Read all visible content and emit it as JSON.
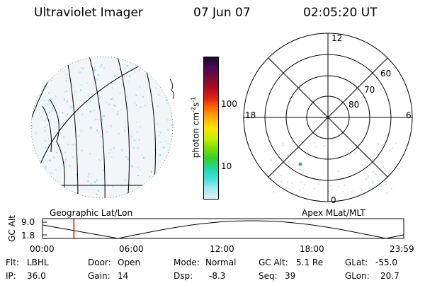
{
  "header": {
    "title": "Ultraviolet Imager",
    "date": "07 Jun 07",
    "time": "02:05:20 UT"
  },
  "colorbar": {
    "unit_label": "photon cm-2 s-1",
    "unit_base": "photon cm",
    "unit_exp1": "-2",
    "unit_s": "s",
    "unit_exp2": "-1",
    "ticks": [
      "100",
      "10"
    ],
    "colors": [
      "#1a0a2a",
      "#4a0a55",
      "#7a0a3a",
      "#b00a20",
      "#e02010",
      "#ff6a00",
      "#ffb000",
      "#ffe400",
      "#c8f000",
      "#7ae000",
      "#30d030",
      "#20d8a0",
      "#40e0e0",
      "#a8e8f0",
      "#e4eef4"
    ]
  },
  "left_map": {
    "caption": "Geographic Lat/Lon"
  },
  "polar_map": {
    "caption": "Apex MLat/MLT",
    "mlt_labels": {
      "top": "12",
      "left": "18",
      "right": "6",
      "bottom": "0"
    },
    "lat_labels": [
      "60",
      "70",
      "80"
    ]
  },
  "timeline": {
    "ylabel": "GC Alt",
    "y_ticks": [
      "9.0",
      "1.8"
    ],
    "x_ticks": [
      "00:00",
      "06:00",
      "12:00",
      "18:00",
      "23:59"
    ],
    "cursor_time": "02:05"
  },
  "info": {
    "filter_label": "Flt:",
    "filter_value": "LBHL",
    "ip_label": "IP:",
    "ip_value": "36.0",
    "door_label": "Door:",
    "door_value": "Open",
    "gain_label": "Gain:",
    "gain_value": "14",
    "mode_label": "Mode:",
    "mode_value": "Normal",
    "dsp_label": "Dsp:",
    "dsp_value": "-8.3",
    "gcalt_label": "GC Alt:",
    "gcalt_value": "5.1 Re",
    "seq_label": "Seq:",
    "seq_value": "39",
    "glat_label": "GLat:",
    "glat_value": "-55.0",
    "glon_label": "GLon:",
    "glon_value": "20.7"
  }
}
